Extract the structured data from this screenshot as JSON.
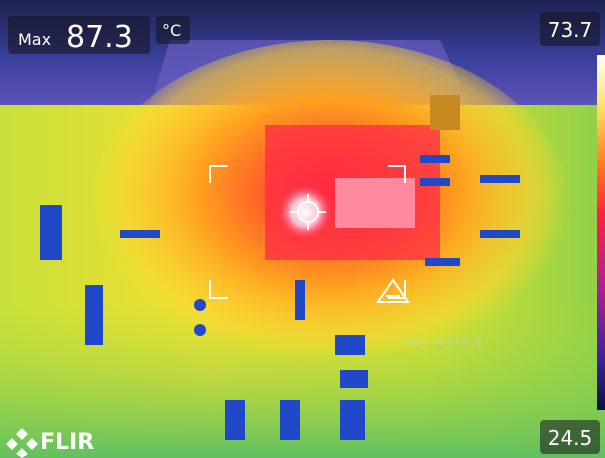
{
  "readout": {
    "label": "Max",
    "value": 87.3,
    "unit": "°C"
  },
  "scale": {
    "max": 73.7,
    "min": 24.5
  },
  "brand": "FLIR",
  "board_text": "HOT SURFACE"
}
